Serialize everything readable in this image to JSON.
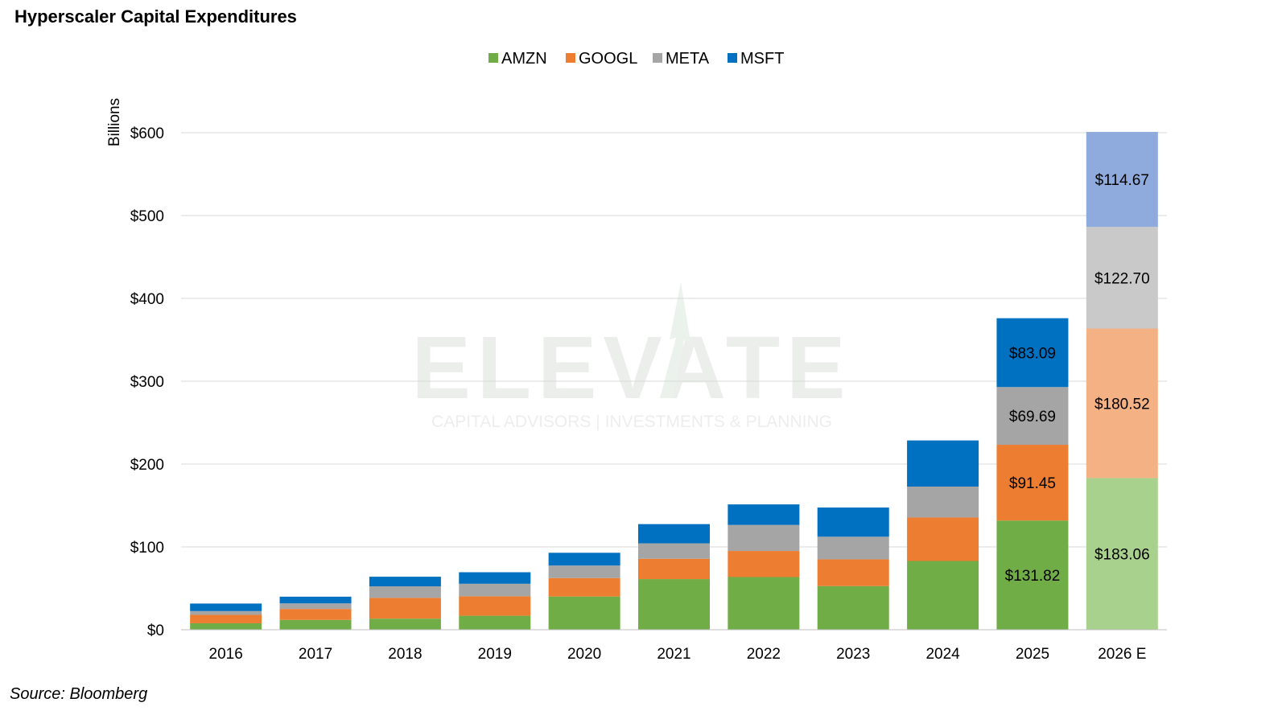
{
  "title": "Hyperscaler Capital Expenditures",
  "source": "Source: Bloomberg",
  "watermark": {
    "name": "ELEVATE",
    "tagline": "CAPITAL ADVISORS | INVESTMENTS & PLANNING"
  },
  "chart_data": {
    "type": "bar",
    "stacked": true,
    "title": "Hyperscaler Capital Expenditures",
    "xlabel": "",
    "ylabel": "Billions",
    "ylim": [
      0,
      600
    ],
    "yticks": [
      0,
      100,
      200,
      300,
      400,
      500,
      600
    ],
    "ytick_labels": [
      "$0",
      "$100",
      "$200",
      "$300",
      "$400",
      "$500",
      "$600"
    ],
    "grid": true,
    "legend_position": "top-center",
    "categories": [
      "2016",
      "2017",
      "2018",
      "2019",
      "2020",
      "2021",
      "2022",
      "2023",
      "2024",
      "2025",
      "2026 E"
    ],
    "series": [
      {
        "name": "AMZN",
        "color": "#70AD47",
        "estimate_color": "#A9D18E",
        "values": [
          7.8,
          11.9,
          13.4,
          16.9,
          40.1,
          61.1,
          63.6,
          52.7,
          83.0,
          131.82,
          183.06
        ]
      },
      {
        "name": "GOOGL",
        "color": "#ED7D31",
        "estimate_color": "#F4B183",
        "values": [
          10.2,
          13.2,
          25.1,
          23.5,
          22.3,
          24.6,
          31.5,
          32.3,
          52.5,
          91.45,
          180.52
        ]
      },
      {
        "name": "META",
        "color": "#A5A5A5",
        "estimate_color": "#C9C9C9",
        "values": [
          4.5,
          6.7,
          13.9,
          15.1,
          15.1,
          18.6,
          31.4,
          27.3,
          37.3,
          69.69,
          122.7
        ]
      },
      {
        "name": "MSFT",
        "color": "#0070C0",
        "estimate_color": "#8FAADC",
        "values": [
          9.1,
          8.1,
          11.6,
          13.9,
          15.4,
          23.2,
          24.8,
          35.2,
          55.7,
          83.09,
          114.67
        ]
      }
    ],
    "data_labels": {
      "2025": [
        "$131.82",
        "$91.45",
        "$69.69",
        "$83.09"
      ],
      "2026 E": [
        "$183.06",
        "$180.52",
        "$122.70",
        "$114.67"
      ]
    }
  }
}
